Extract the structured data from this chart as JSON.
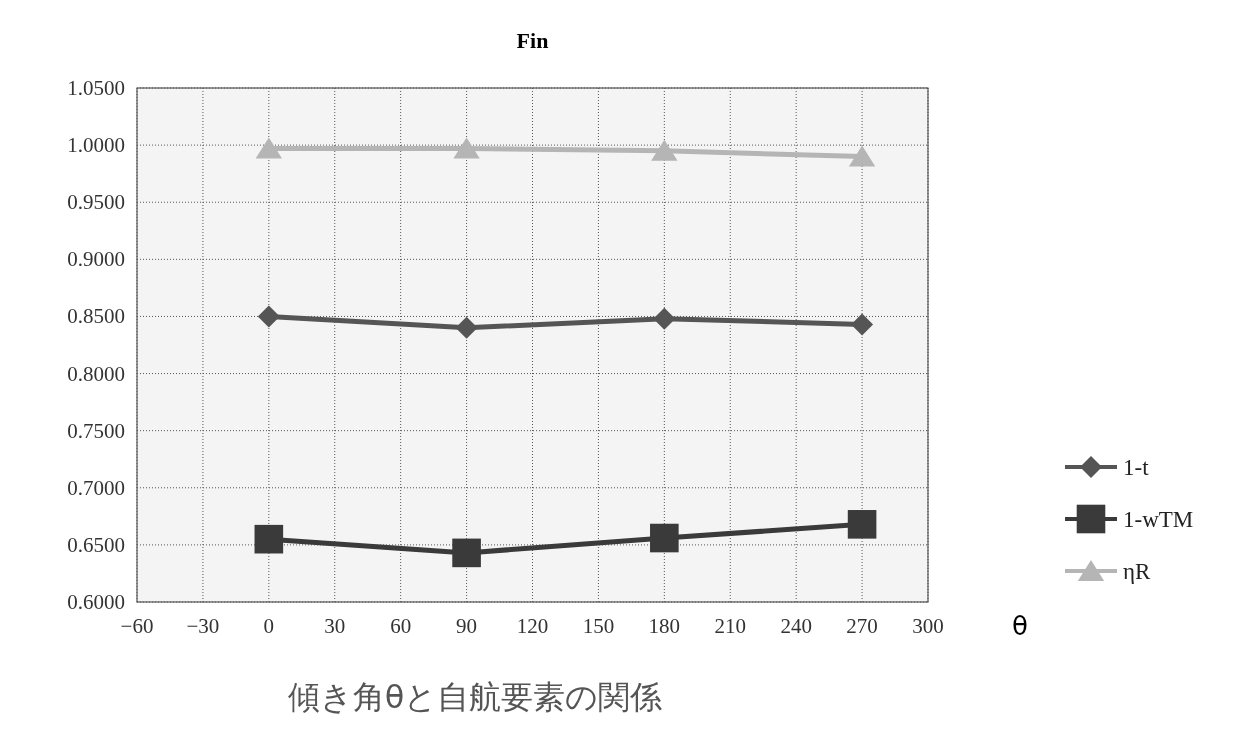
{
  "chart_data": {
    "type": "line",
    "title": "Fin",
    "xlabel": "θ",
    "annotations": [
      "傾き角θと自航要素の関係"
    ],
    "x": [
      0,
      90,
      180,
      270
    ],
    "series": [
      {
        "name": "1-t",
        "color": "#555555",
        "marker": "diamond",
        "values": [
          0.85,
          0.84,
          0.848,
          0.843
        ]
      },
      {
        "name": "1-wTM",
        "color": "#3a3a3a",
        "marker": "square",
        "values": [
          0.655,
          0.643,
          0.656,
          0.668
        ]
      },
      {
        "name": "ηR",
        "color": "#b5b5b5",
        "marker": "triangle",
        "values": [
          0.997,
          0.997,
          0.995,
          0.99
        ]
      }
    ],
    "xlim": [
      -60,
      300
    ],
    "xticks": [
      -60,
      -30,
      0,
      30,
      60,
      90,
      120,
      150,
      180,
      210,
      240,
      270,
      300
    ],
    "ylim": [
      0.6,
      1.05
    ],
    "yticks": [
      {
        "value": 0.6,
        "label": "0.6000"
      },
      {
        "value": 0.65,
        "label": "0.6500"
      },
      {
        "value": 0.7,
        "label": "0.7000"
      },
      {
        "value": 0.75,
        "label": "0.7500"
      },
      {
        "value": 0.8,
        "label": "0.8000"
      },
      {
        "value": 0.85,
        "label": "0.8500"
      },
      {
        "value": 0.9,
        "label": "0.9000"
      },
      {
        "value": 0.95,
        "label": "0.9500"
      },
      {
        "value": 1.0,
        "label": "1.0000"
      },
      {
        "value": 1.05,
        "label": "1.0500"
      }
    ],
    "grid": true,
    "legend": "right"
  }
}
